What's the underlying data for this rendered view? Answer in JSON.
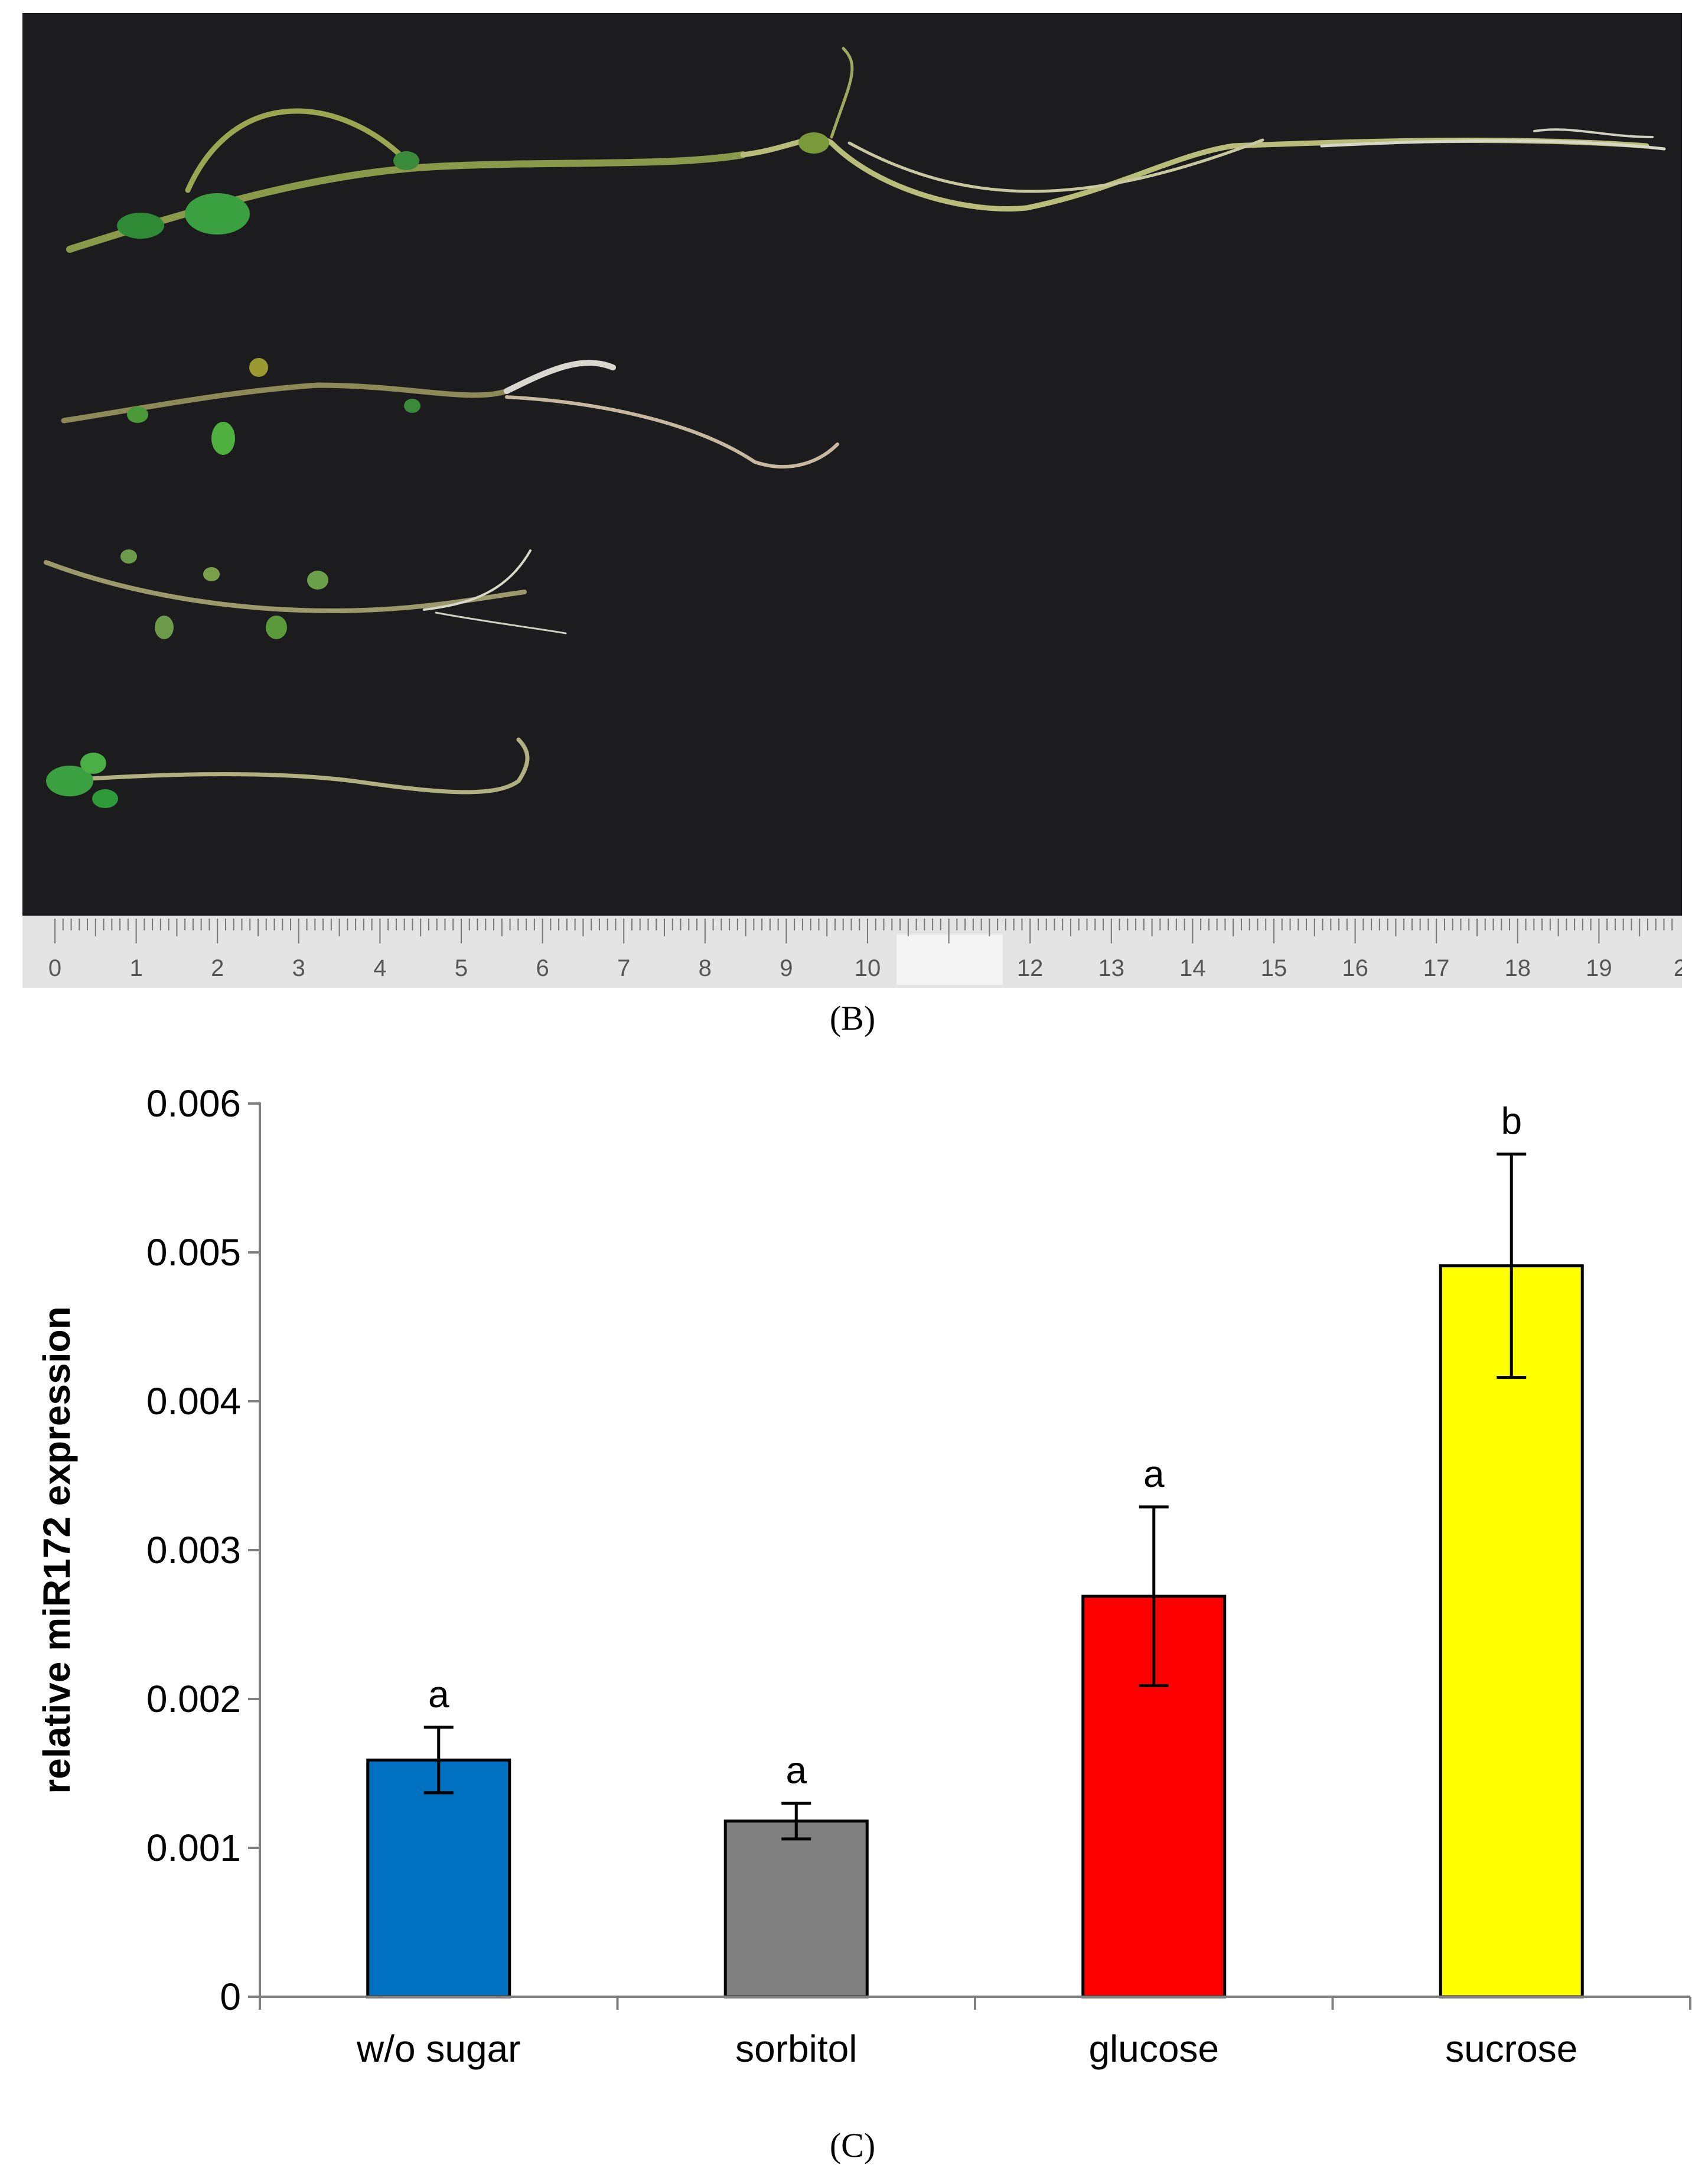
{
  "panels": {
    "photo_label": "(B)",
    "chart_label": "(C)"
  },
  "ruler": {
    "numbers": [
      "0",
      "1",
      "2",
      "3",
      "4",
      "5",
      "6",
      "7",
      "8",
      "9",
      "10",
      "",
      "12",
      "13",
      "14",
      "15",
      "16",
      "17",
      "18",
      "19",
      "2"
    ]
  },
  "chart_data": {
    "type": "bar",
    "categories": [
      "w/o sugar",
      "sorbitol",
      "glucose",
      "sucrose"
    ],
    "values": [
      0.00159,
      0.00118,
      0.00269,
      0.00491
    ],
    "errors": [
      0.00022,
      0.00012,
      0.0006,
      0.00075
    ],
    "significance": [
      "a",
      "a",
      "a",
      "b"
    ],
    "colors": [
      "#0070c0",
      "#808080",
      "#ff0000",
      "#ffff00"
    ],
    "ylabel": "relative miR172 expression",
    "xlabel": "",
    "ylim": [
      0,
      0.006
    ],
    "yticks": [
      "0",
      "0.001",
      "0.002",
      "0.003",
      "0.004",
      "0.005",
      "0.006"
    ],
    "grid": false,
    "legend": "none"
  }
}
